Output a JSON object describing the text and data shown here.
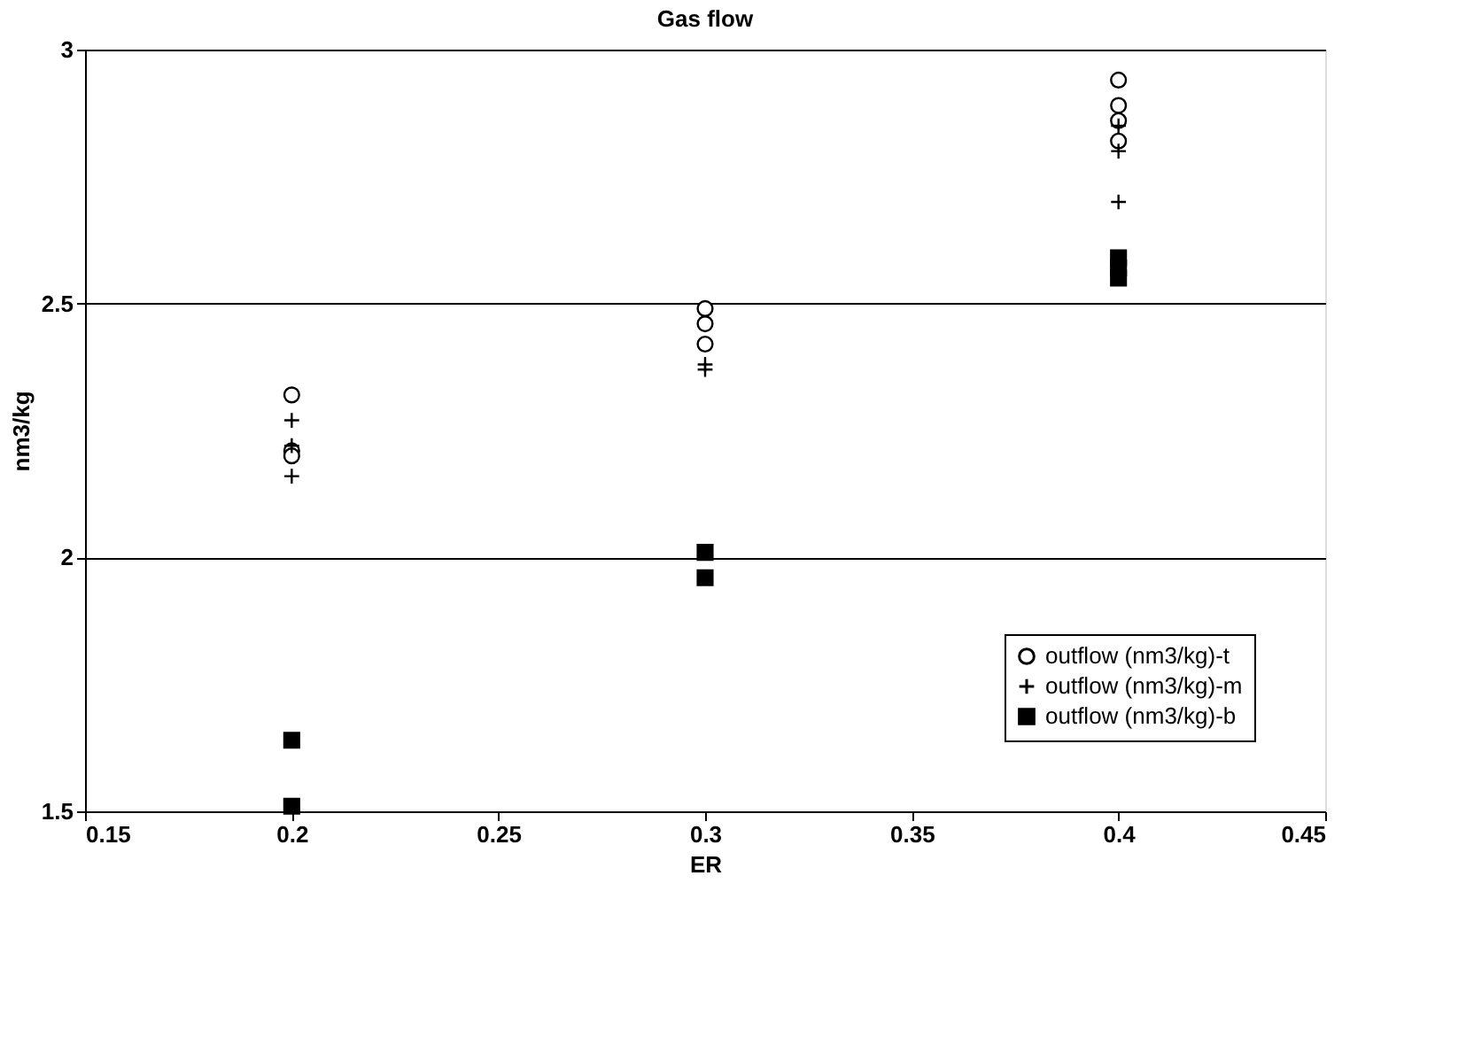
{
  "chart_data": {
    "type": "scatter",
    "title": "Gas flow",
    "xlabel": "ER",
    "ylabel": "nm3/kg",
    "xlim": [
      0.15,
      0.45
    ],
    "xticks": [
      0.15,
      0.2,
      0.25,
      0.3,
      0.35,
      0.4,
      0.45
    ],
    "ylim": [
      1.5,
      3
    ],
    "yticks": [
      1.5,
      2,
      2.5,
      3
    ],
    "grid": "y",
    "legend": "bottom right",
    "series": [
      {
        "name": "outflow (nm3/kg)-t",
        "color": "#000000",
        "marker": "circle",
        "x": [
          0.2,
          0.2,
          0.2,
          0.3,
          0.3,
          0.3,
          0.4,
          0.4,
          0.4,
          0.4
        ],
        "values": [
          2.32,
          2.21,
          2.2,
          2.49,
          2.46,
          2.42,
          2.94,
          2.89,
          2.86,
          2.82
        ]
      },
      {
        "name": "outflow (nm3/kg)-m",
        "color": "#000000",
        "marker": "cross",
        "x": [
          0.2,
          0.2,
          0.2,
          0.3,
          0.3,
          0.4,
          0.4,
          0.4
        ],
        "values": [
          2.27,
          2.22,
          2.16,
          2.38,
          2.37,
          2.85,
          2.8,
          2.7
        ]
      },
      {
        "name": "outflow (nm3/kg)-b",
        "color": "#000000",
        "marker": "square",
        "x": [
          0.2,
          0.2,
          0.3,
          0.3,
          0.4,
          0.4,
          0.4
        ],
        "values": [
          1.64,
          1.51,
          2.01,
          1.96,
          2.59,
          2.57,
          2.55
        ]
      }
    ]
  }
}
